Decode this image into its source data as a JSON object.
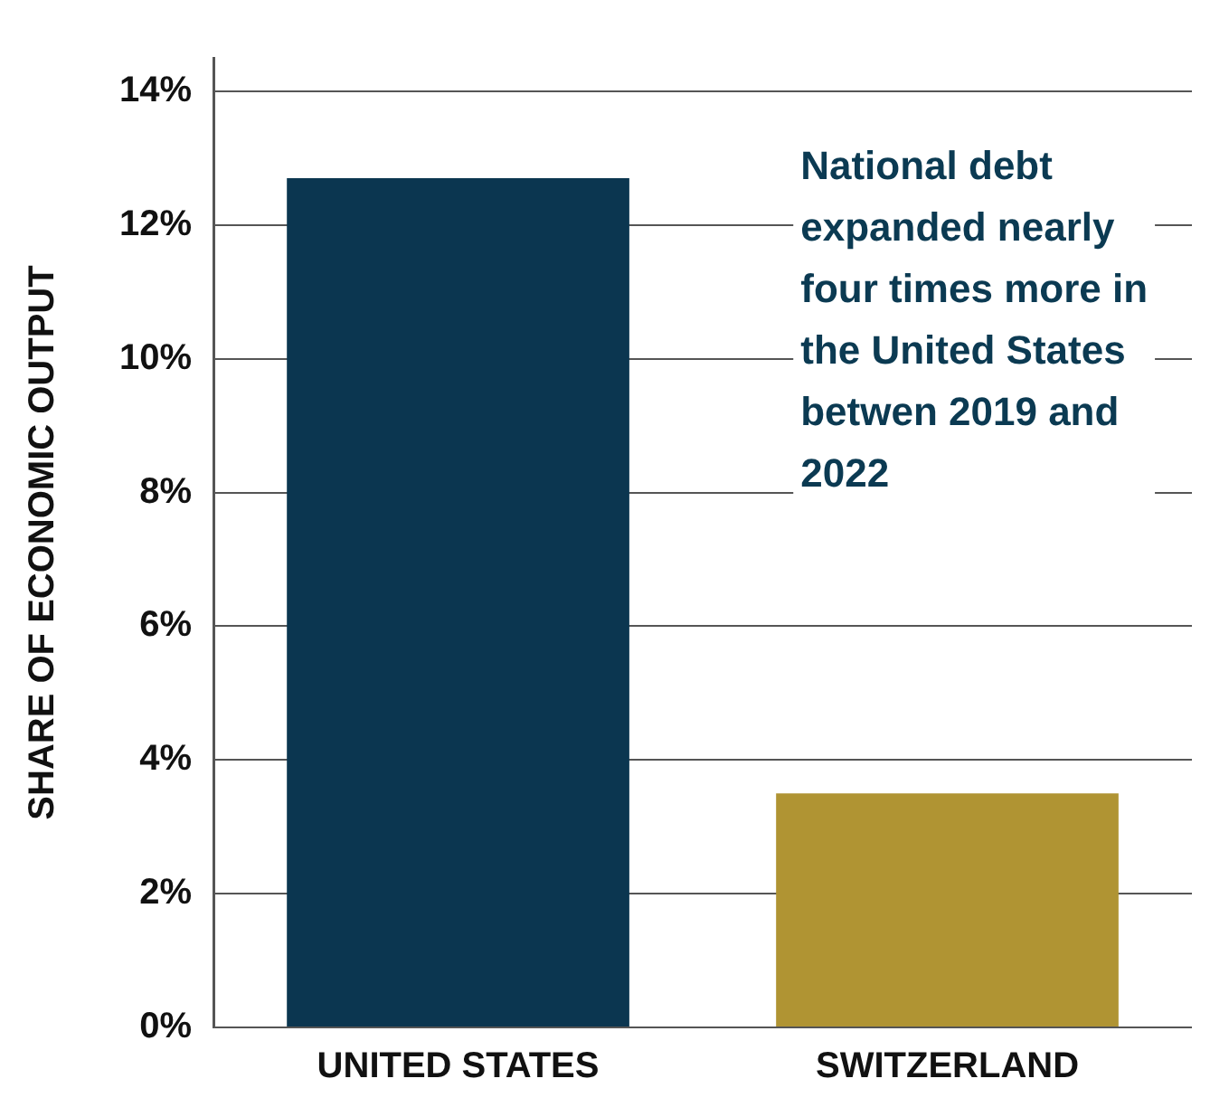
{
  "chart_data": {
    "type": "bar",
    "ylabel": "SHARE OF ECONOMIC OUTPUT",
    "categories": [
      "UNITED STATES",
      "SWITZERLAND"
    ],
    "values": [
      12.7,
      3.5
    ],
    "colors": [
      "#0b3650",
      "#b09433"
    ],
    "ylim": [
      0,
      14.5
    ],
    "yticks": [
      {
        "value": 0,
        "label": "0%"
      },
      {
        "value": 2,
        "label": "2%"
      },
      {
        "value": 4,
        "label": "4%"
      },
      {
        "value": 6,
        "label": "6%"
      },
      {
        "value": 8,
        "label": "8%"
      },
      {
        "value": 10,
        "label": "10%"
      },
      {
        "value": 12,
        "label": "12%"
      },
      {
        "value": 14,
        "label": "14%"
      }
    ],
    "grid": "y",
    "legend": false,
    "annotations": [
      "National debt expanded nearly four times more in the United States betwen 2019 and 2022"
    ]
  }
}
